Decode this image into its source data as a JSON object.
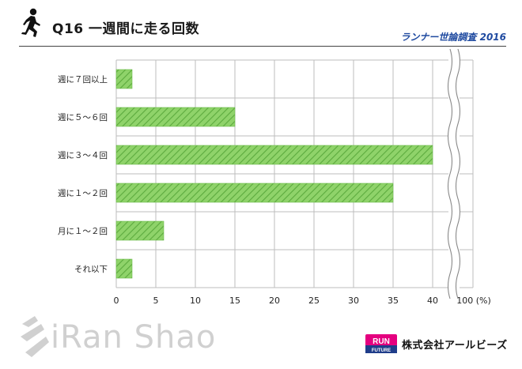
{
  "header": {
    "title": "Q16 一週間に走る回数",
    "survey": "ランナー世論調査 2016"
  },
  "footer": {
    "watermark_text": "iRan Shao",
    "logo_line1": "RUN",
    "logo_line2": "FUTURE",
    "company": "株式会社アールビーズ"
  },
  "chart_data": {
    "type": "bar",
    "orientation": "horizontal",
    "categories": [
      "週に７回以上",
      "週に５～６回",
      "週に３～４回",
      "週に１～２回",
      "月に１～２回",
      "それ以下"
    ],
    "values": [
      2,
      15,
      40,
      35,
      6,
      2
    ],
    "xticks": [
      "0",
      "5",
      "10",
      "15",
      "20",
      "25",
      "30",
      "35",
      "40",
      "100 (%)"
    ],
    "xlim": [
      0,
      40
    ],
    "axis_break": true,
    "grid": true,
    "bar_color": "#8fd36a",
    "hatch_color": "#5caa3e"
  },
  "icons": {
    "runner": "runner-icon",
    "watermark": "iranshao-logo-icon",
    "badge": "run-future-logo-icon"
  }
}
